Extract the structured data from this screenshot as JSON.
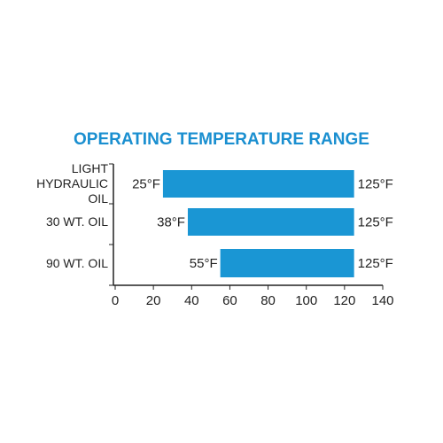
{
  "chart_data": {
    "type": "range-bar",
    "title": "OPERATING TEMPERATURE RANGE",
    "categories": [
      "LIGHT\nHYDRAULIC\nOIL",
      "30 WT. OIL",
      "90 WT. OIL"
    ],
    "values": [
      [
        25,
        125
      ],
      [
        38,
        125
      ],
      [
        55,
        125
      ]
    ],
    "value_labels": [
      [
        "25°F",
        "125°F"
      ],
      [
        "38°F",
        "125°F"
      ],
      [
        "55°F",
        "125°F"
      ]
    ],
    "color": "#1a96d4",
    "title_color": "#1a8fd0",
    "xlim": [
      0,
      140
    ],
    "xticks": [
      0,
      20,
      40,
      60,
      80,
      100,
      120,
      140
    ]
  }
}
